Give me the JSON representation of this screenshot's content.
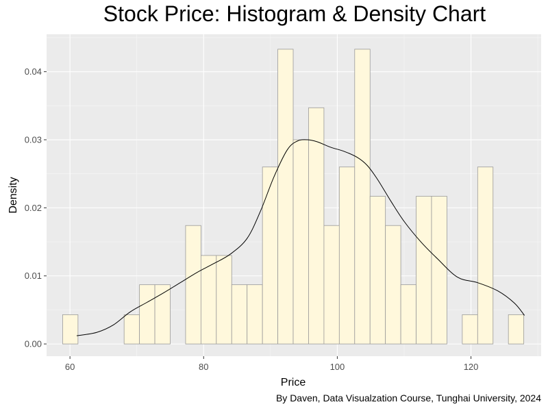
{
  "chart_data": {
    "type": "histogram",
    "title": "Stock Price: Histogram & Density Chart",
    "xlabel": "Price",
    "ylabel": "Density",
    "caption": "By Daven, Data Visualzation Course, Tunghai University, 2024",
    "xlim": [
      56.5,
      130.5
    ],
    "ylim": [
      -0.0018,
      0.0455
    ],
    "xticks": [
      60,
      80,
      100,
      120
    ],
    "yticks": [
      0.0,
      0.01,
      0.02,
      0.03,
      0.04
    ],
    "ytick_labels": [
      "0.00",
      "0.01",
      "0.02",
      "0.03",
      "0.04"
    ],
    "bin_width": 2.3,
    "bins": [
      {
        "start": 58.9,
        "density": 0.0043
      },
      {
        "start": 61.2,
        "density": 0.0
      },
      {
        "start": 63.5,
        "density": 0.0
      },
      {
        "start": 65.8,
        "density": 0.0
      },
      {
        "start": 68.1,
        "density": 0.0043
      },
      {
        "start": 70.4,
        "density": 0.0087
      },
      {
        "start": 72.7,
        "density": 0.0087
      },
      {
        "start": 75.0,
        "density": 0.0
      },
      {
        "start": 77.3,
        "density": 0.0174
      },
      {
        "start": 79.6,
        "density": 0.013
      },
      {
        "start": 81.9,
        "density": 0.013
      },
      {
        "start": 84.2,
        "density": 0.0087
      },
      {
        "start": 86.5,
        "density": 0.0087
      },
      {
        "start": 88.8,
        "density": 0.026
      },
      {
        "start": 91.1,
        "density": 0.0433
      },
      {
        "start": 93.4,
        "density": 0.03
      },
      {
        "start": 95.7,
        "density": 0.0347
      },
      {
        "start": 98.0,
        "density": 0.0174
      },
      {
        "start": 100.3,
        "density": 0.026
      },
      {
        "start": 102.6,
        "density": 0.0433
      },
      {
        "start": 104.9,
        "density": 0.0217
      },
      {
        "start": 107.2,
        "density": 0.0174
      },
      {
        "start": 109.5,
        "density": 0.0087
      },
      {
        "start": 111.8,
        "density": 0.0217
      },
      {
        "start": 114.1,
        "density": 0.0217
      },
      {
        "start": 116.4,
        "density": 0.0
      },
      {
        "start": 118.7,
        "density": 0.0043
      },
      {
        "start": 121.0,
        "density": 0.026
      },
      {
        "start": 123.3,
        "density": 0.0
      },
      {
        "start": 125.6,
        "density": 0.0043
      }
    ],
    "density_curve": {
      "x": [
        61.0,
        64.0,
        66.5,
        69.0,
        71.5,
        74.0,
        76.5,
        79.0,
        81.5,
        84.0,
        86.5,
        88.5,
        90.5,
        92.5,
        94.0,
        95.5,
        97.0,
        99.0,
        101.0,
        103.0,
        104.5,
        106.0,
        108.0,
        110.0,
        112.5,
        115.0,
        118.0,
        121.0,
        124.0,
        126.5,
        128.0
      ],
      "y": [
        0.0012,
        0.0017,
        0.0028,
        0.0047,
        0.0061,
        0.0075,
        0.009,
        0.0105,
        0.0118,
        0.0132,
        0.0155,
        0.0195,
        0.0245,
        0.0285,
        0.0298,
        0.03,
        0.0297,
        0.0289,
        0.0283,
        0.0274,
        0.0262,
        0.0242,
        0.021,
        0.018,
        0.015,
        0.0125,
        0.0098,
        0.009,
        0.0078,
        0.006,
        0.0042
      ]
    },
    "grid": true,
    "legend": "none"
  },
  "colors": {
    "panel_bg": "#ebebeb",
    "grid_major": "#ffffff",
    "grid_minor": "#f6f6f6",
    "bar_fill": "#fff8dc",
    "bar_stroke": "#999999",
    "curve": "#000000",
    "tick_text": "#4d4d4d",
    "axis_title": "#000000"
  }
}
